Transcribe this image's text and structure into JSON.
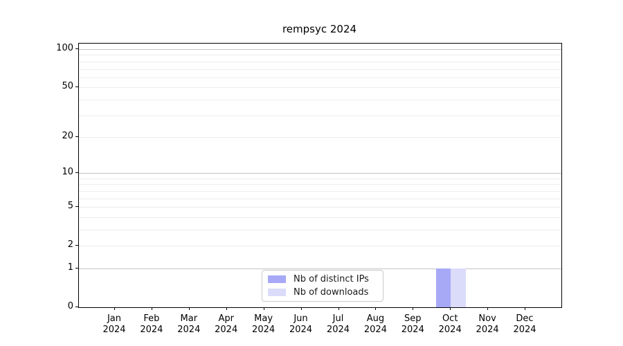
{
  "figure": {
    "title": "rempsyc 2024"
  },
  "chart_data": {
    "type": "bar",
    "title": "rempsyc 2024",
    "x_axis": {
      "months": [
        "Jan",
        "Feb",
        "Mar",
        "Apr",
        "May",
        "Jun",
        "Jul",
        "Aug",
        "Sep",
        "Oct",
        "Nov",
        "Dec"
      ],
      "year": "2024"
    },
    "y_axis": {
      "scale": "log1p",
      "tick_labels": [
        0,
        1,
        2,
        5,
        10,
        20,
        50,
        100
      ],
      "major_gridlines": [
        1,
        10,
        100
      ],
      "minor_gridlines": [
        2,
        3,
        4,
        5,
        6,
        7,
        8,
        9,
        20,
        30,
        40,
        50,
        60,
        70,
        80,
        90
      ]
    },
    "series": [
      {
        "name": "Nb of distinct IPs",
        "color": "#a7a9f6",
        "values": [
          0,
          0,
          0,
          0,
          0,
          0,
          0,
          0,
          0,
          1,
          0,
          0
        ]
      },
      {
        "name": "Nb of downloads",
        "color": "#dbdcf9",
        "values": [
          0,
          0,
          0,
          0,
          0,
          0,
          0,
          0,
          0,
          1,
          0,
          0
        ]
      }
    ],
    "legend": {
      "position": "lower-center",
      "entries": [
        "Nb of distinct IPs",
        "Nb of downloads"
      ]
    }
  },
  "colors": {
    "major_grid": "#c3c3c3",
    "minor_grid": "#ededed",
    "spine": "#000000",
    "background": "#ffffff",
    "legend_border": "#c9c9c9",
    "text": "#000000"
  }
}
